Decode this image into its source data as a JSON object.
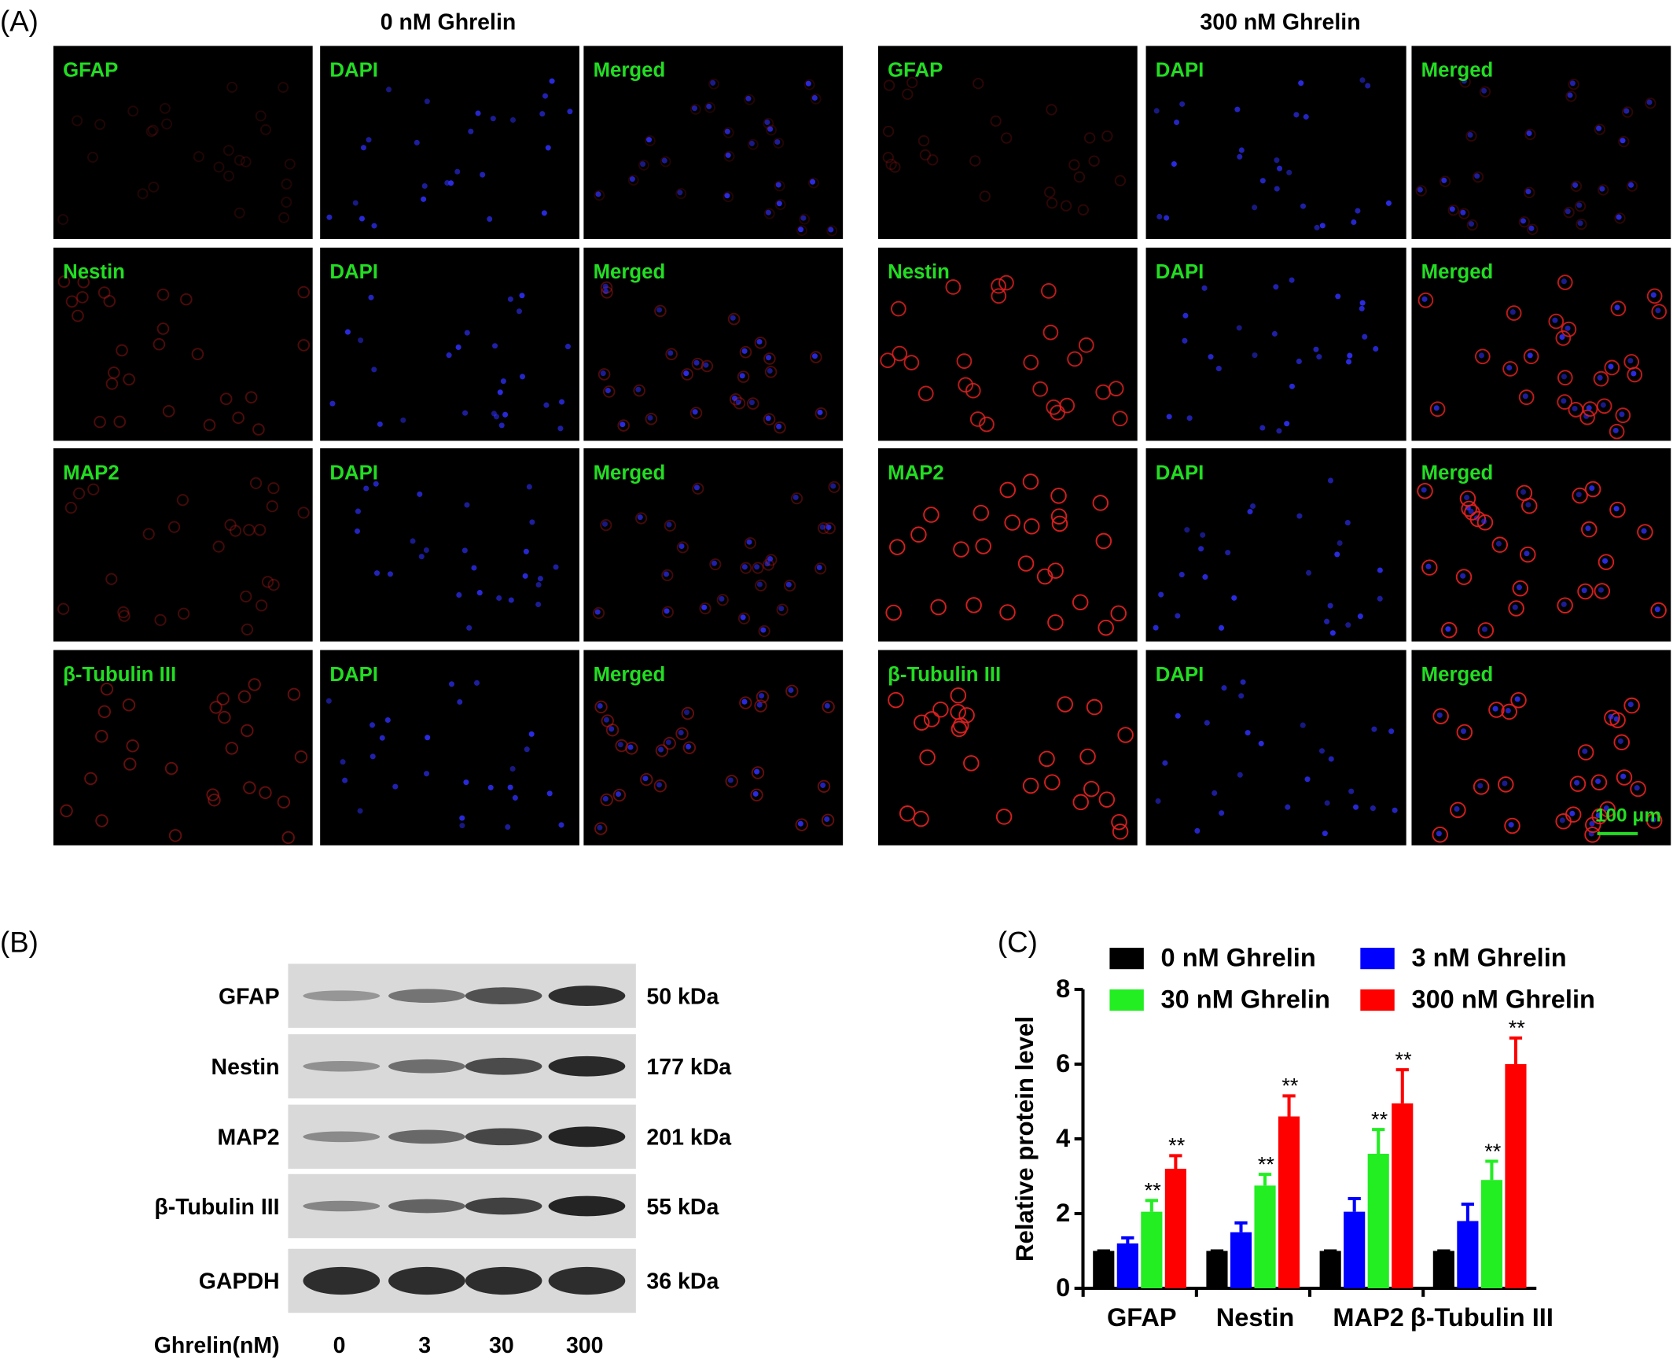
{
  "panel_a": {
    "label": "(A)",
    "groups": [
      {
        "title": "0 nM Ghrelin",
        "rows": [
          {
            "panels": [
              "GFAP",
              "DAPI",
              "Merged"
            ]
          },
          {
            "panels": [
              "Nestin",
              "DAPI",
              "Merged"
            ]
          },
          {
            "panels": [
              "MAP2",
              "DAPI",
              "Merged"
            ]
          },
          {
            "panels": [
              "β-Tubulin III",
              "DAPI",
              "Merged"
            ]
          }
        ]
      },
      {
        "title": "300 nM Ghrelin",
        "rows": [
          {
            "panels": [
              "GFAP",
              "DAPI",
              "Merged"
            ]
          },
          {
            "panels": [
              "Nestin",
              "DAPI",
              "Merged"
            ]
          },
          {
            "panels": [
              "MAP2",
              "DAPI",
              "Merged"
            ]
          },
          {
            "panels": [
              "β-Tubulin III",
              "DAPI",
              "Merged"
            ]
          }
        ]
      }
    ],
    "scale_bar": "100 μm"
  },
  "panel_b": {
    "label": "(B)",
    "rows": [
      {
        "protein": "GFAP",
        "size": "50 kDa"
      },
      {
        "protein": "Nestin",
        "size": "177 kDa"
      },
      {
        "protein": "MAP2",
        "size": "201 kDa"
      },
      {
        "protein": "β-Tubulin III",
        "size": "55 kDa"
      },
      {
        "protein": "GAPDH",
        "size": "36 kDa"
      }
    ],
    "lane_title": "Ghrelin(nM)",
    "lanes": [
      0,
      3,
      30,
      300
    ]
  },
  "chart_data": {
    "type": "bar",
    "panel_label": "(C)",
    "y_label": "Relative protein level",
    "categories": [
      "GFAP",
      "Nestin",
      "MAP2",
      "β-Tubulin III"
    ],
    "series": [
      {
        "name": "0 nM Ghrelin",
        "color": "#000000",
        "values": [
          1.0,
          1.0,
          1.0,
          1.0
        ],
        "errors": [
          0.0,
          0.0,
          0.0,
          0.0
        ]
      },
      {
        "name": "3 nM Ghrelin",
        "color": "#0000ff",
        "values": [
          1.2,
          1.5,
          2.05,
          1.8
        ],
        "errors": [
          0.15,
          0.25,
          0.35,
          0.45
        ]
      },
      {
        "name": "30 nM Ghrelin",
        "color": "#22ee22",
        "values": [
          2.05,
          2.75,
          3.6,
          2.9
        ],
        "errors": [
          0.3,
          0.3,
          0.65,
          0.5
        ],
        "significance": [
          "**",
          "**",
          "**",
          "**"
        ]
      },
      {
        "name": "300 nM Ghrelin",
        "color": "#ff0000",
        "values": [
          3.2,
          4.6,
          4.95,
          6.0
        ],
        "errors": [
          0.35,
          0.55,
          0.9,
          0.7
        ],
        "significance": [
          "**",
          "**",
          "**",
          "**"
        ]
      }
    ],
    "ylim": [
      0,
      8
    ],
    "yticks": [
      0,
      2,
      4,
      6,
      8
    ],
    "legend": "top"
  }
}
